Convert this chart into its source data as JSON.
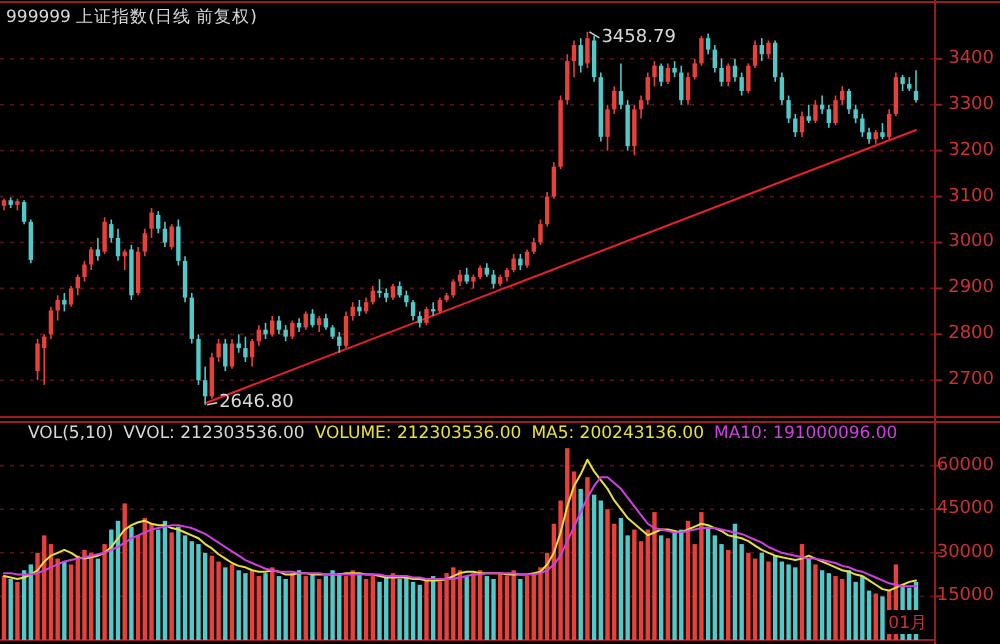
{
  "chart_data": [
    {
      "type": "candlestick",
      "title": "999999 上证指数(日线 前复权)",
      "tick_labels": "y",
      "grid": "y",
      "ylim": [
        2620,
        3515
      ],
      "yticks": [
        2700,
        2800,
        2900,
        3000,
        3100,
        3200,
        3300,
        3400
      ],
      "annotations": [
        "3458.79",
        "2646.80"
      ],
      "categories": [
        null,
        null,
        null,
        null,
        null,
        null,
        null,
        null,
        null,
        null,
        null,
        null,
        null,
        null,
        null,
        null,
        null,
        null,
        null,
        null,
        null,
        null,
        null,
        null,
        null,
        null,
        null,
        null,
        null,
        null,
        null,
        null,
        null,
        null,
        null,
        null,
        null,
        null,
        null,
        null,
        null,
        null,
        null,
        null,
        null,
        null,
        null,
        null,
        null,
        null,
        null,
        null,
        null,
        null,
        null,
        null,
        null,
        null,
        null,
        null,
        null,
        null,
        null,
        null,
        null,
        null,
        null,
        null,
        null,
        null,
        null,
        null,
        null,
        null,
        null,
        null,
        null,
        null,
        null,
        null,
        null,
        null,
        null,
        null,
        null,
        null,
        null,
        null,
        null,
        null,
        null,
        null,
        null,
        null,
        null,
        null,
        null,
        null,
        null,
        null,
        null,
        null,
        null,
        null,
        null,
        null,
        null,
        null,
        null,
        null,
        null,
        null,
        null,
        null,
        null,
        null,
        null,
        null,
        null,
        null,
        null,
        null,
        null,
        null,
        null,
        null,
        null,
        null,
        null,
        null,
        null,
        null,
        null,
        null,
        null,
        null,
        null
      ],
      "ohlc": [
        [
          3080,
          3095,
          3070,
          3092
        ],
        [
          3092,
          3098,
          3075,
          3082
        ],
        [
          3082,
          3095,
          3070,
          3090
        ],
        [
          3088,
          3092,
          3040,
          3045
        ],
        [
          3045,
          3050,
          2955,
          2962
        ],
        [
          2720,
          2790,
          2700,
          2780
        ],
        [
          2770,
          2800,
          2690,
          2795
        ],
        [
          2800,
          2860,
          2790,
          2852
        ],
        [
          2852,
          2885,
          2830,
          2875
        ],
        [
          2875,
          2890,
          2850,
          2865
        ],
        [
          2865,
          2905,
          2860,
          2900
        ],
        [
          2900,
          2930,
          2885,
          2925
        ],
        [
          2925,
          2960,
          2915,
          2952
        ],
        [
          2952,
          2990,
          2940,
          2985
        ],
        [
          2985,
          3010,
          2960,
          2970
        ],
        [
          2980,
          3055,
          2975,
          3045
        ],
        [
          3040,
          3050,
          3000,
          3010
        ],
        [
          3010,
          3030,
          2960,
          2970
        ],
        [
          2970,
          2985,
          2940,
          2980
        ],
        [
          2985,
          2995,
          2875,
          2885
        ],
        [
          2890,
          2990,
          2885,
          2980
        ],
        [
          2980,
          3030,
          2970,
          3020
        ],
        [
          3030,
          3075,
          3010,
          3065
        ],
        [
          3060,
          3068,
          3020,
          3030
        ],
        [
          3030,
          3045,
          2990,
          3000
        ],
        [
          2990,
          3040,
          2985,
          3035
        ],
        [
          3035,
          3050,
          2950,
          2960
        ],
        [
          2960,
          2970,
          2870,
          2880
        ],
        [
          2880,
          2890,
          2780,
          2790
        ],
        [
          2790,
          2800,
          2690,
          2700
        ],
        [
          2700,
          2730,
          2646.8,
          2665
        ],
        [
          2665,
          2760,
          2660,
          2750
        ],
        [
          2750,
          2790,
          2740,
          2780
        ],
        [
          2780,
          2790,
          2720,
          2730
        ],
        [
          2730,
          2790,
          2725,
          2780
        ],
        [
          2780,
          2800,
          2760,
          2770
        ],
        [
          2770,
          2795,
          2740,
          2750
        ],
        [
          2750,
          2790,
          2730,
          2785
        ],
        [
          2785,
          2820,
          2775,
          2810
        ],
        [
          2810,
          2825,
          2790,
          2800
        ],
        [
          2800,
          2840,
          2795,
          2830
        ],
        [
          2830,
          2840,
          2800,
          2810
        ],
        [
          2810,
          2820,
          2785,
          2795
        ],
        [
          2795,
          2830,
          2790,
          2825
        ],
        [
          2825,
          2835,
          2805,
          2815
        ],
        [
          2815,
          2850,
          2810,
          2845
        ],
        [
          2845,
          2855,
          2815,
          2820
        ],
        [
          2820,
          2840,
          2805,
          2835
        ],
        [
          2835,
          2845,
          2810,
          2815
        ],
        [
          2815,
          2820,
          2790,
          2795
        ],
        [
          2795,
          2805,
          2760,
          2775
        ],
        [
          2775,
          2850,
          2770,
          2840
        ],
        [
          2840,
          2870,
          2830,
          2860
        ],
        [
          2860,
          2875,
          2840,
          2850
        ],
        [
          2850,
          2880,
          2845,
          2870
        ],
        [
          2870,
          2905,
          2865,
          2895
        ],
        [
          2895,
          2920,
          2880,
          2890
        ],
        [
          2890,
          2900,
          2870,
          2880
        ],
        [
          2880,
          2910,
          2875,
          2905
        ],
        [
          2905,
          2915,
          2880,
          2885
        ],
        [
          2885,
          2895,
          2860,
          2870
        ],
        [
          2870,
          2875,
          2830,
          2840
        ],
        [
          2840,
          2850,
          2815,
          2825
        ],
        [
          2825,
          2860,
          2820,
          2855
        ],
        [
          2855,
          2870,
          2840,
          2850
        ],
        [
          2850,
          2880,
          2845,
          2875
        ],
        [
          2875,
          2890,
          2870,
          2885
        ],
        [
          2885,
          2920,
          2880,
          2915
        ],
        [
          2915,
          2940,
          2905,
          2930
        ],
        [
          2930,
          2945,
          2910,
          2915
        ],
        [
          2915,
          2930,
          2900,
          2925
        ],
        [
          2925,
          2950,
          2920,
          2945
        ],
        [
          2945,
          2955,
          2925,
          2930
        ],
        [
          2930,
          2940,
          2900,
          2910
        ],
        [
          2910,
          2930,
          2905,
          2925
        ],
        [
          2925,
          2945,
          2915,
          2940
        ],
        [
          2940,
          2975,
          2935,
          2965
        ],
        [
          2965,
          2975,
          2940,
          2950
        ],
        [
          2950,
          2985,
          2945,
          2980
        ],
        [
          2980,
          3010,
          2975,
          3000
        ],
        [
          3000,
          3050,
          2995,
          3040
        ],
        [
          3040,
          3110,
          3035,
          3100
        ],
        [
          3100,
          3175,
          3095,
          3165
        ],
        [
          3165,
          3320,
          3160,
          3310
        ],
        [
          3310,
          3410,
          3300,
          3395
        ],
        [
          3395,
          3440,
          3360,
          3430
        ],
        [
          3430,
          3445,
          3370,
          3385
        ],
        [
          3390,
          3458.79,
          3380,
          3445
        ],
        [
          3440,
          3450,
          3350,
          3360
        ],
        [
          3360,
          3370,
          3220,
          3230
        ],
        [
          3230,
          3300,
          3200,
          3290
        ],
        [
          3290,
          3340,
          3280,
          3330
        ],
        [
          3330,
          3390,
          3290,
          3300
        ],
        [
          3300,
          3310,
          3200,
          3210
        ],
        [
          3210,
          3300,
          3190,
          3290
        ],
        [
          3290,
          3320,
          3270,
          3310
        ],
        [
          3310,
          3370,
          3300,
          3360
        ],
        [
          3360,
          3395,
          3340,
          3385
        ],
        [
          3385,
          3390,
          3340,
          3350
        ],
        [
          3350,
          3390,
          3345,
          3380
        ],
        [
          3380,
          3395,
          3360,
          3370
        ],
        [
          3370,
          3385,
          3300,
          3310
        ],
        [
          3310,
          3370,
          3300,
          3360
        ],
        [
          3360,
          3400,
          3355,
          3390
        ],
        [
          3390,
          3450,
          3385,
          3445
        ],
        [
          3445,
          3455,
          3410,
          3420
        ],
        [
          3420,
          3430,
          3370,
          3380
        ],
        [
          3380,
          3400,
          3340,
          3350
        ],
        [
          3350,
          3390,
          3340,
          3385
        ],
        [
          3385,
          3400,
          3350,
          3360
        ],
        [
          3360,
          3370,
          3320,
          3330
        ],
        [
          3330,
          3390,
          3325,
          3385
        ],
        [
          3385,
          3440,
          3380,
          3430
        ],
        [
          3430,
          3445,
          3395,
          3410
        ],
        [
          3410,
          3440,
          3400,
          3435
        ],
        [
          3435,
          3440,
          3350,
          3360
        ],
        [
          3360,
          3370,
          3300,
          3310
        ],
        [
          3310,
          3320,
          3260,
          3270
        ],
        [
          3270,
          3280,
          3230,
          3240
        ],
        [
          3240,
          3285,
          3230,
          3275
        ],
        [
          3275,
          3300,
          3260,
          3265
        ],
        [
          3265,
          3310,
          3260,
          3300
        ],
        [
          3300,
          3320,
          3280,
          3290
        ],
        [
          3290,
          3300,
          3250,
          3260
        ],
        [
          3260,
          3320,
          3255,
          3310
        ],
        [
          3310,
          3340,
          3300,
          3330
        ],
        [
          3330,
          3335,
          3280,
          3290
        ],
        [
          3290,
          3300,
          3260,
          3270
        ],
        [
          3270,
          3280,
          3230,
          3240
        ],
        [
          3240,
          3250,
          3215,
          3225
        ],
        [
          3225,
          3245,
          3215,
          3240
        ],
        [
          3240,
          3260,
          3225,
          3230
        ],
        [
          3230,
          3290,
          3225,
          3280
        ],
        [
          3280,
          3370,
          3275,
          3360
        ],
        [
          3360,
          3365,
          3330,
          3345
        ],
        [
          3345,
          3360,
          3330,
          3335
        ],
        [
          3330,
          3375,
          3305,
          3310
        ]
      ],
      "colors": [
        "#e8413c",
        "#52c8c8",
        "#e8413c",
        "#52c8c8",
        "#52c8c8",
        "#e8413c",
        "#e8413c",
        "#e8413c",
        "#e8413c",
        "#52c8c8",
        "#e8413c",
        "#e8413c",
        "#e8413c",
        "#e8413c",
        "#52c8c8",
        "#e8413c",
        "#52c8c8",
        "#52c8c8",
        "#e8413c",
        "#52c8c8",
        "#e8413c",
        "#e8413c",
        "#e8413c",
        "#52c8c8",
        "#52c8c8",
        "#e8413c",
        "#52c8c8",
        "#52c8c8",
        "#52c8c8",
        "#52c8c8",
        "#52c8c8",
        "#e8413c",
        "#e8413c",
        "#52c8c8",
        "#e8413c",
        "#52c8c8",
        "#52c8c8",
        "#e8413c",
        "#e8413c",
        "#52c8c8",
        "#e8413c",
        "#52c8c8",
        "#52c8c8",
        "#e8413c",
        "#52c8c8",
        "#e8413c",
        "#52c8c8",
        "#e8413c",
        "#52c8c8",
        "#52c8c8",
        "#52c8c8",
        "#e8413c",
        "#e8413c",
        "#52c8c8",
        "#e8413c",
        "#e8413c",
        "#52c8c8",
        "#52c8c8",
        "#e8413c",
        "#52c8c8",
        "#52c8c8",
        "#52c8c8",
        "#52c8c8",
        "#e8413c",
        "#52c8c8",
        "#e8413c",
        "#e8413c",
        "#e8413c",
        "#e8413c",
        "#52c8c8",
        "#e8413c",
        "#e8413c",
        "#52c8c8",
        "#52c8c8",
        "#e8413c",
        "#e8413c",
        "#e8413c",
        "#52c8c8",
        "#e8413c",
        "#e8413c",
        "#e8413c",
        "#e8413c",
        "#e8413c",
        "#e8413c",
        "#e8413c",
        "#e8413c",
        "#52c8c8",
        "#e8413c",
        "#52c8c8",
        "#52c8c8",
        "#e8413c",
        "#e8413c",
        "#52c8c8",
        "#52c8c8",
        "#e8413c",
        "#e8413c",
        "#e8413c",
        "#e8413c",
        "#52c8c8",
        "#e8413c",
        "#52c8c8",
        "#52c8c8",
        "#e8413c",
        "#e8413c",
        "#e8413c",
        "#52c8c8",
        "#52c8c8",
        "#52c8c8",
        "#e8413c",
        "#52c8c8",
        "#52c8c8",
        "#e8413c",
        "#e8413c",
        "#52c8c8",
        "#e8413c",
        "#52c8c8",
        "#52c8c8",
        "#52c8c8",
        "#52c8c8",
        "#e8413c",
        "#52c8c8",
        "#e8413c",
        "#52c8c8",
        "#52c8c8",
        "#e8413c",
        "#e8413c",
        "#52c8c8",
        "#52c8c8",
        "#52c8c8",
        "#52c8c8",
        "#e8413c",
        "#52c8c8",
        "#e8413c",
        "#e8413c",
        "#52c8c8",
        "#52c8c8",
        "#52c8c8"
      ],
      "series": [
        {
          "type": "line",
          "color": "#e8202a",
          "values": [
            null,
            null,
            null,
            null,
            null,
            null,
            null,
            null,
            null,
            null,
            null,
            null,
            null,
            null,
            null,
            null,
            null,
            null,
            null,
            null,
            null,
            null,
            null,
            null,
            null,
            null,
            null,
            null,
            null,
            null,
            2650,
            null,
            null,
            null,
            null,
            null,
            null,
            null,
            null,
            null,
            null,
            null,
            null,
            null,
            null,
            null,
            null,
            null,
            null,
            null,
            null,
            null,
            null,
            null,
            null,
            null,
            null,
            null,
            null,
            null,
            null,
            null,
            null,
            null,
            null,
            null,
            null,
            null,
            null,
            null,
            null,
            null,
            null,
            null,
            null,
            null,
            null,
            null,
            null,
            null,
            null,
            null,
            null,
            null,
            null,
            null,
            null,
            null,
            null,
            null,
            null,
            null,
            null,
            null,
            null,
            null,
            null,
            null,
            null,
            null,
            null,
            null,
            null,
            null,
            null,
            null,
            null,
            null,
            null,
            null,
            null,
            null,
            null,
            null,
            null,
            null,
            null,
            null,
            null,
            null,
            null,
            null,
            null,
            null,
            null,
            null,
            null,
            null,
            null,
            null,
            null,
            null,
            null,
            null,
            null,
            null,
            3245
          ]
        }
      ]
    },
    {
      "type": "bar",
      "title": "VOL(5,10)",
      "xlabel": "01月",
      "tick_labels": "y",
      "grid": "y",
      "legend": "top",
      "ylim": [
        0,
        75000
      ],
      "yticks": [
        15000,
        30000,
        45000,
        60000
      ],
      "annotations": [
        "VVOL: 212303536.00",
        "VOLUME: 212303536.00"
      ],
      "categories": [
        null,
        null,
        null,
        null,
        null,
        null,
        null,
        null,
        null,
        null,
        null,
        null,
        null,
        null,
        null,
        null,
        null,
        null,
        null,
        null,
        null,
        null,
        null,
        null,
        null,
        null,
        null,
        null,
        null,
        null,
        null,
        null,
        null,
        null,
        null,
        null,
        null,
        null,
        null,
        null,
        null,
        null,
        null,
        null,
        null,
        null,
        null,
        null,
        null,
        null,
        null,
        null,
        null,
        null,
        null,
        null,
        null,
        null,
        null,
        null,
        null,
        null,
        null,
        null,
        null,
        null,
        null,
        null,
        null,
        null,
        null,
        null,
        null,
        null,
        null,
        null,
        null,
        null,
        null,
        null,
        null,
        null,
        null,
        null,
        null,
        null,
        null,
        null,
        null,
        null,
        null,
        null,
        null,
        null,
        null,
        null,
        null,
        null,
        null,
        null,
        null,
        null,
        null,
        null,
        null,
        null,
        null,
        null,
        null,
        null,
        null,
        null,
        null,
        null,
        null,
        null,
        null,
        null,
        null,
        null,
        null,
        null,
        null,
        null,
        null,
        null,
        null,
        null,
        null,
        null,
        null,
        null,
        null,
        null,
        null,
        null,
        null
      ],
      "series": [
        {
          "type": "bar",
          "values": [
            22000,
            21000,
            20000,
            24000,
            26000,
            30000,
            36000,
            33000,
            28000,
            27000,
            26000,
            29000,
            31000,
            30000,
            28000,
            33000,
            38000,
            41000,
            47000,
            39000,
            36000,
            42000,
            40000,
            38000,
            41000,
            37000,
            39000,
            36000,
            34000,
            33000,
            30000,
            29000,
            27000,
            25000,
            26000,
            24000,
            23000,
            24000,
            22000,
            23000,
            25000,
            22000,
            21000,
            23000,
            24000,
            22000,
            23000,
            21000,
            22000,
            24000,
            23000,
            22000,
            24000,
            23000,
            21000,
            22000,
            20000,
            22000,
            23000,
            21000,
            22000,
            20000,
            19000,
            21000,
            22000,
            20000,
            23000,
            25000,
            24000,
            22000,
            23000,
            24000,
            22000,
            21000,
            23000,
            22000,
            24000,
            21000,
            22000,
            23000,
            25000,
            30000,
            40000,
            48000,
            66000,
            58000,
            52000,
            56000,
            50000,
            48000,
            45000,
            40000,
            42000,
            36000,
            38000,
            34000,
            38000,
            44000,
            36000,
            35000,
            37000,
            38000,
            41000,
            33000,
            44000,
            39000,
            36000,
            33000,
            31000,
            40000,
            33000,
            30000,
            28000,
            30000,
            27000,
            29000,
            27000,
            26000,
            25000,
            33000,
            28000,
            26000,
            24000,
            23000,
            22000,
            21000,
            24000,
            20000,
            22000,
            17000,
            16000,
            15000,
            17000,
            26000,
            19000,
            18000,
            20000
          ],
          "colors": [
            "#e8413c",
            "#52c8c8",
            "#e8413c",
            "#52c8c8",
            "#52c8c8",
            "#e8413c",
            "#e8413c",
            "#e8413c",
            "#e8413c",
            "#52c8c8",
            "#e8413c",
            "#e8413c",
            "#e8413c",
            "#e8413c",
            "#52c8c8",
            "#e8413c",
            "#52c8c8",
            "#52c8c8",
            "#e8413c",
            "#52c8c8",
            "#e8413c",
            "#e8413c",
            "#e8413c",
            "#52c8c8",
            "#52c8c8",
            "#e8413c",
            "#52c8c8",
            "#52c8c8",
            "#52c8c8",
            "#52c8c8",
            "#52c8c8",
            "#e8413c",
            "#e8413c",
            "#52c8c8",
            "#e8413c",
            "#52c8c8",
            "#52c8c8",
            "#e8413c",
            "#e8413c",
            "#52c8c8",
            "#e8413c",
            "#52c8c8",
            "#52c8c8",
            "#e8413c",
            "#52c8c8",
            "#e8413c",
            "#52c8c8",
            "#e8413c",
            "#52c8c8",
            "#52c8c8",
            "#52c8c8",
            "#e8413c",
            "#e8413c",
            "#52c8c8",
            "#e8413c",
            "#e8413c",
            "#52c8c8",
            "#52c8c8",
            "#e8413c",
            "#52c8c8",
            "#52c8c8",
            "#52c8c8",
            "#52c8c8",
            "#e8413c",
            "#52c8c8",
            "#e8413c",
            "#e8413c",
            "#e8413c",
            "#e8413c",
            "#52c8c8",
            "#e8413c",
            "#e8413c",
            "#52c8c8",
            "#52c8c8",
            "#e8413c",
            "#e8413c",
            "#e8413c",
            "#52c8c8",
            "#e8413c",
            "#e8413c",
            "#e8413c",
            "#e8413c",
            "#e8413c",
            "#e8413c",
            "#e8413c",
            "#e8413c",
            "#52c8c8",
            "#e8413c",
            "#52c8c8",
            "#52c8c8",
            "#e8413c",
            "#e8413c",
            "#52c8c8",
            "#52c8c8",
            "#e8413c",
            "#e8413c",
            "#e8413c",
            "#e8413c",
            "#52c8c8",
            "#e8413c",
            "#52c8c8",
            "#52c8c8",
            "#e8413c",
            "#e8413c",
            "#e8413c",
            "#52c8c8",
            "#52c8c8",
            "#52c8c8",
            "#e8413c",
            "#52c8c8",
            "#52c8c8",
            "#e8413c",
            "#e8413c",
            "#52c8c8",
            "#e8413c",
            "#52c8c8",
            "#52c8c8",
            "#52c8c8",
            "#52c8c8",
            "#e8413c",
            "#52c8c8",
            "#e8413c",
            "#52c8c8",
            "#52c8c8",
            "#e8413c",
            "#e8413c",
            "#52c8c8",
            "#52c8c8",
            "#52c8c8",
            "#52c8c8",
            "#e8413c",
            "#52c8c8",
            "#e8413c",
            "#e8413c",
            "#52c8c8",
            "#52c8c8",
            "#52c8c8"
          ]
        },
        {
          "type": "line",
          "name": "MA5: 200243136.00",
          "color": "#e8e040",
          "values": [
            22000,
            21500,
            21000,
            21500,
            22500,
            24000,
            27000,
            29000,
            30000,
            31000,
            30000,
            28500,
            28000,
            28500,
            29000,
            30000,
            32000,
            35000,
            38000,
            39500,
            40500,
            41000,
            40000,
            39500,
            39500,
            38500,
            38000,
            37000,
            36000,
            35000,
            33000,
            31500,
            29500,
            28000,
            26500,
            25500,
            25000,
            24000,
            23500,
            23500,
            24000,
            23500,
            22500,
            22500,
            23000,
            23000,
            22500,
            22500,
            22500,
            22500,
            22500,
            23000,
            23000,
            23000,
            22500,
            22500,
            22000,
            21500,
            21500,
            21500,
            21500,
            21000,
            21000,
            20500,
            20500,
            20500,
            21000,
            22000,
            23000,
            23500,
            23500,
            23000,
            23000,
            23000,
            23000,
            22500,
            22500,
            22500,
            22500,
            23000,
            23500,
            26000,
            30000,
            37000,
            46000,
            53000,
            57000,
            62000,
            58000,
            55000,
            52000,
            48000,
            45000,
            42000,
            40000,
            38000,
            36000,
            37000,
            38000,
            38000,
            37500,
            37000,
            38000,
            39000,
            40000,
            39500,
            38500,
            37500,
            36000,
            35500,
            35000,
            34000,
            32500,
            31000,
            30000,
            29000,
            28500,
            28000,
            27500,
            28000,
            29000,
            28000,
            27000,
            26000,
            25000,
            24000,
            23500,
            22500,
            22000,
            20500,
            19000,
            17500,
            17000,
            18000,
            19000,
            20000,
            20500
          ]
        },
        {
          "type": "line",
          "name": "MA10: 191000096.00",
          "color": "#d040e0",
          "values": [
            23000,
            23000,
            22500,
            22500,
            22500,
            23000,
            24000,
            25000,
            26000,
            27000,
            27500,
            28000,
            28500,
            29000,
            29500,
            30000,
            31000,
            32000,
            33500,
            35000,
            36000,
            37000,
            38000,
            38500,
            39000,
            39500,
            39500,
            39000,
            38500,
            37500,
            36500,
            35000,
            33500,
            32000,
            30500,
            29000,
            27500,
            26500,
            25500,
            24500,
            24000,
            23500,
            23500,
            23500,
            23000,
            23000,
            23000,
            23000,
            22500,
            22500,
            22500,
            22500,
            22500,
            22500,
            22500,
            22500,
            22500,
            22000,
            22000,
            22000,
            22000,
            21500,
            21500,
            21000,
            21000,
            21000,
            21000,
            21000,
            21500,
            22000,
            22500,
            22500,
            23000,
            23000,
            23000,
            23000,
            23000,
            22500,
            22500,
            22500,
            23000,
            24000,
            26000,
            29000,
            34000,
            39000,
            44000,
            49000,
            53000,
            56000,
            56000,
            54000,
            52000,
            49000,
            46000,
            43000,
            40000,
            38500,
            38000,
            37500,
            37000,
            37000,
            37500,
            38000,
            38500,
            38500,
            38500,
            38000,
            37500,
            37000,
            36500,
            35500,
            34500,
            33500,
            32000,
            31000,
            30000,
            29500,
            29000,
            28500,
            28000,
            28000,
            27500,
            27000,
            26500,
            25500,
            25000,
            24000,
            23500,
            22500,
            21500,
            20500,
            19500,
            19000,
            18500,
            18500,
            18500
          ]
        }
      ]
    }
  ]
}
